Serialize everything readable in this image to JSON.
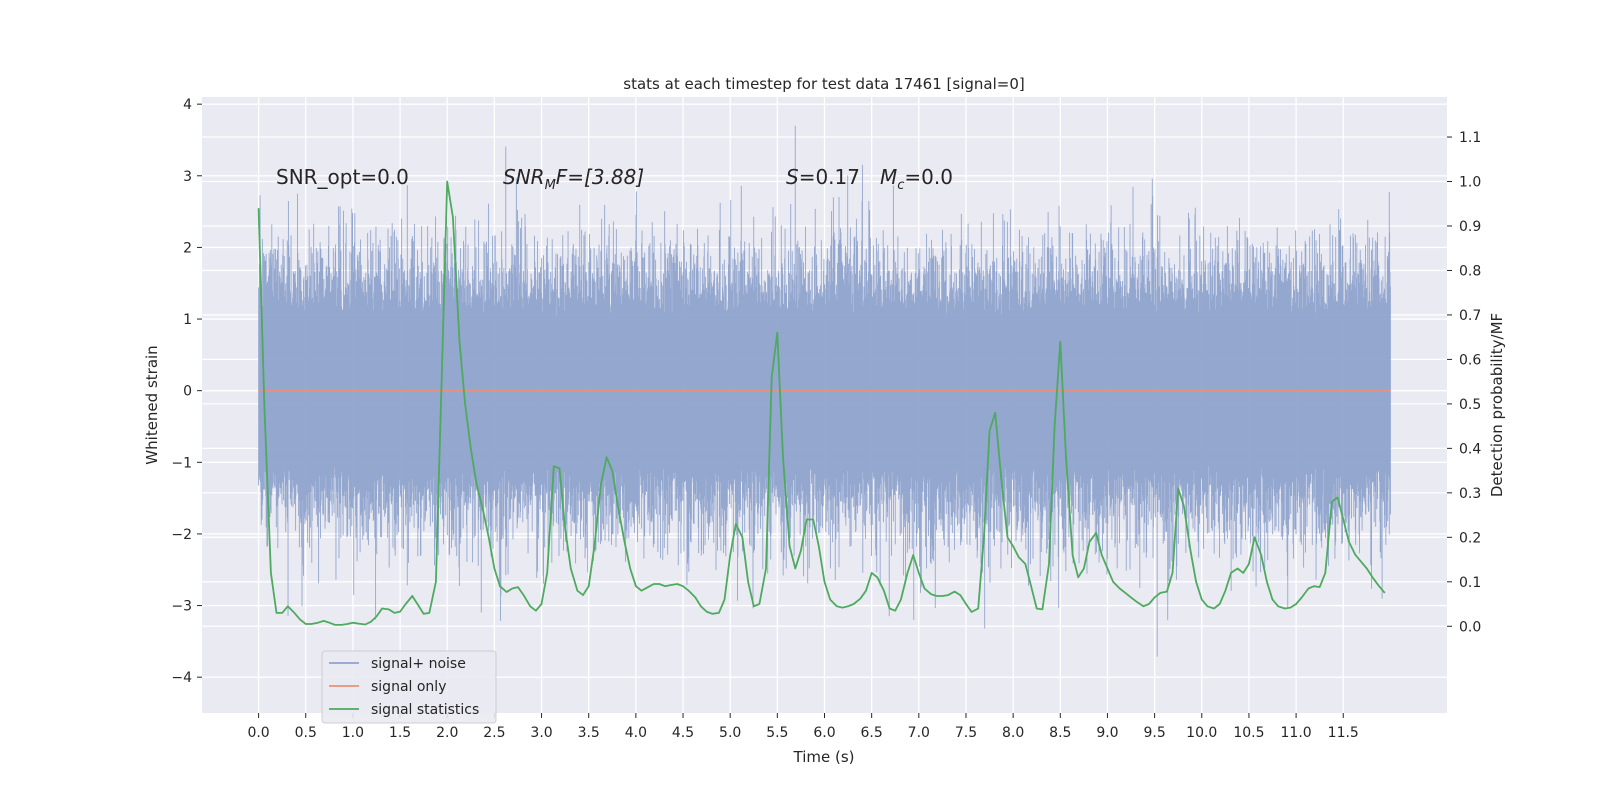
{
  "chart_data": {
    "type": "line",
    "title": "stats at each timestep for test data 17461 [signal=0]",
    "xlabel": "Time (s)",
    "ylabel_left": "Whitened strain",
    "ylabel_right": "Detection probability/MF",
    "xlim": [
      -0.6,
      12.6
    ],
    "ylim_left": [
      -4.5,
      4.1
    ],
    "ylim_right": [
      -0.195,
      1.19
    ],
    "x_ticks": [
      0.0,
      0.5,
      1.0,
      1.5,
      2.0,
      2.5,
      3.0,
      3.5,
      4.0,
      4.5,
      5.0,
      5.5,
      6.0,
      6.5,
      7.0,
      7.5,
      8.0,
      8.5,
      9.0,
      9.5,
      10.0,
      10.5,
      11.0,
      11.5
    ],
    "x_tick_labels": [
      "0.0",
      "0.5",
      "1.0",
      "1.5",
      "2.0",
      "2.5",
      "3.0",
      "3.5",
      "4.0",
      "4.5",
      "5.0",
      "5.5",
      "6.0",
      "6.5",
      "7.0",
      "7.5",
      "8.0",
      "8.5",
      "9.0",
      "9.5",
      "10.0",
      "10.5",
      "11.0",
      "11.5"
    ],
    "y_left_ticks": [
      4,
      3,
      2,
      1,
      0,
      -1,
      -2,
      -3,
      -4
    ],
    "y_left_tick_labels": [
      "4",
      "3",
      "2",
      "1",
      "0",
      "−1",
      "−2",
      "−3",
      "−4"
    ],
    "y_right_ticks": [
      1.1,
      1.0,
      0.9,
      0.8,
      0.7,
      0.6,
      0.5,
      0.4,
      0.3,
      0.2,
      0.1,
      0.0
    ],
    "y_right_tick_labels": [
      "1.1",
      "1.0",
      "0.9",
      "0.8",
      "0.7",
      "0.6",
      "0.5",
      "0.4",
      "0.3",
      "0.2",
      "0.1",
      "0.0"
    ],
    "grid": true,
    "legend_position": "lower-left",
    "colors": {
      "noise": "#8fa3cc",
      "signal": "#e8927c",
      "stats": "#4daa5e",
      "background": "#eaeaf2",
      "grid": "#ffffff"
    },
    "annotations": {
      "snr_opt": "SNR_opt=0.0",
      "snr_mf_main": "SNR",
      "snr_mf_sub": "M",
      "snr_mf_rest": "F=[3.88]",
      "s_main": "S",
      "s_rest": "=0.17",
      "mc_main": "M",
      "mc_sub": "c",
      "mc_rest": "=0.0"
    },
    "series": [
      {
        "name": "signal+ noise",
        "note": "dense whitened noise band, upper envelope ~1.5-3.7, lower envelope ~-1.5 to -4.1",
        "x_range": [
          0.0,
          12.0
        ],
        "y_range": [
          -4.1,
          3.7
        ]
      },
      {
        "name": "signal only",
        "x": [
          0.0,
          12.0
        ],
        "y": [
          0.0,
          0.0
        ]
      },
      {
        "name": "signal statistics",
        "x": [
          0.0,
          0.06,
          0.13,
          0.19,
          0.25,
          0.31,
          0.38,
          0.44,
          0.5,
          0.56,
          0.63,
          0.69,
          0.75,
          0.81,
          0.88,
          0.94,
          1.0,
          1.06,
          1.13,
          1.19,
          1.25,
          1.31,
          1.38,
          1.44,
          1.5,
          1.56,
          1.63,
          1.69,
          1.75,
          1.81,
          1.88,
          1.94,
          2.0,
          2.06,
          2.13,
          2.19,
          2.25,
          2.31,
          2.38,
          2.44,
          2.5,
          2.56,
          2.63,
          2.69,
          2.75,
          2.81,
          2.88,
          2.94,
          3.0,
          3.06,
          3.13,
          3.19,
          3.25,
          3.31,
          3.38,
          3.44,
          3.5,
          3.56,
          3.63,
          3.69,
          3.75,
          3.81,
          3.88,
          3.94,
          4.0,
          4.06,
          4.13,
          4.19,
          4.25,
          4.31,
          4.38,
          4.44,
          4.5,
          4.56,
          4.63,
          4.69,
          4.75,
          4.81,
          4.88,
          4.94,
          5.0,
          5.06,
          5.13,
          5.19,
          5.25,
          5.31,
          5.38,
          5.44,
          5.5,
          5.56,
          5.63,
          5.69,
          5.75,
          5.81,
          5.88,
          5.94,
          6.0,
          6.06,
          6.13,
          6.19,
          6.25,
          6.31,
          6.38,
          6.44,
          6.5,
          6.56,
          6.63,
          6.69,
          6.75,
          6.81,
          6.88,
          6.94,
          7.0,
          7.06,
          7.13,
          7.19,
          7.25,
          7.31,
          7.38,
          7.44,
          7.5,
          7.56,
          7.63,
          7.69,
          7.75,
          7.81,
          7.88,
          7.94,
          8.0,
          8.06,
          8.13,
          8.19,
          8.25,
          8.31,
          8.38,
          8.44,
          8.5,
          8.56,
          8.63,
          8.69,
          8.75,
          8.81,
          8.88,
          8.94,
          9.0,
          9.06,
          9.13,
          9.19,
          9.25,
          9.31,
          9.38,
          9.44,
          9.5,
          9.56,
          9.63,
          9.69,
          9.75,
          9.81,
          9.88,
          9.94,
          10.0,
          10.06,
          10.13,
          10.19,
          10.25,
          10.31,
          10.38,
          10.44,
          10.5,
          10.56,
          10.63,
          10.69,
          10.75,
          10.81,
          10.88,
          10.94,
          11.0,
          11.06,
          11.13,
          11.19,
          11.25,
          11.31,
          11.38,
          11.44,
          11.5,
          11.56,
          11.63,
          11.69,
          11.75,
          11.81,
          11.88,
          11.94
        ],
        "y": [
          0.94,
          0.5,
          0.12,
          0.03,
          0.03,
          0.045,
          0.03,
          0.015,
          0.005,
          0.005,
          0.008,
          0.012,
          0.008,
          0.003,
          0.003,
          0.005,
          0.008,
          0.006,
          0.004,
          0.01,
          0.022,
          0.04,
          0.038,
          0.03,
          0.033,
          0.05,
          0.068,
          0.048,
          0.028,
          0.03,
          0.1,
          0.55,
          1.0,
          0.92,
          0.64,
          0.5,
          0.4,
          0.32,
          0.26,
          0.2,
          0.13,
          0.09,
          0.077,
          0.085,
          0.088,
          0.07,
          0.045,
          0.035,
          0.05,
          0.12,
          0.36,
          0.355,
          0.22,
          0.13,
          0.08,
          0.07,
          0.09,
          0.18,
          0.32,
          0.38,
          0.35,
          0.27,
          0.19,
          0.13,
          0.09,
          0.08,
          0.088,
          0.095,
          0.095,
          0.09,
          0.093,
          0.095,
          0.09,
          0.08,
          0.065,
          0.045,
          0.033,
          0.028,
          0.03,
          0.06,
          0.16,
          0.23,
          0.2,
          0.1,
          0.045,
          0.05,
          0.13,
          0.56,
          0.66,
          0.38,
          0.18,
          0.13,
          0.17,
          0.24,
          0.24,
          0.18,
          0.1,
          0.06,
          0.045,
          0.042,
          0.045,
          0.05,
          0.062,
          0.08,
          0.12,
          0.11,
          0.08,
          0.04,
          0.035,
          0.06,
          0.12,
          0.16,
          0.12,
          0.085,
          0.072,
          0.068,
          0.068,
          0.07,
          0.078,
          0.07,
          0.05,
          0.032,
          0.04,
          0.2,
          0.44,
          0.48,
          0.32,
          0.2,
          0.18,
          0.155,
          0.14,
          0.09,
          0.04,
          0.038,
          0.14,
          0.45,
          0.64,
          0.38,
          0.16,
          0.11,
          0.13,
          0.19,
          0.21,
          0.16,
          0.13,
          0.1,
          0.085,
          0.075,
          0.065,
          0.055,
          0.045,
          0.05,
          0.065,
          0.075,
          0.078,
          0.12,
          0.31,
          0.27,
          0.17,
          0.1,
          0.06,
          0.045,
          0.04,
          0.05,
          0.08,
          0.12,
          0.13,
          0.12,
          0.14,
          0.2,
          0.16,
          0.1,
          0.06,
          0.045,
          0.04,
          0.042,
          0.05,
          0.065,
          0.085,
          0.09,
          0.088,
          0.12,
          0.28,
          0.29,
          0.24,
          0.19,
          0.16,
          0.145,
          0.13,
          0.11,
          0.09,
          0.075
        ]
      }
    ]
  }
}
